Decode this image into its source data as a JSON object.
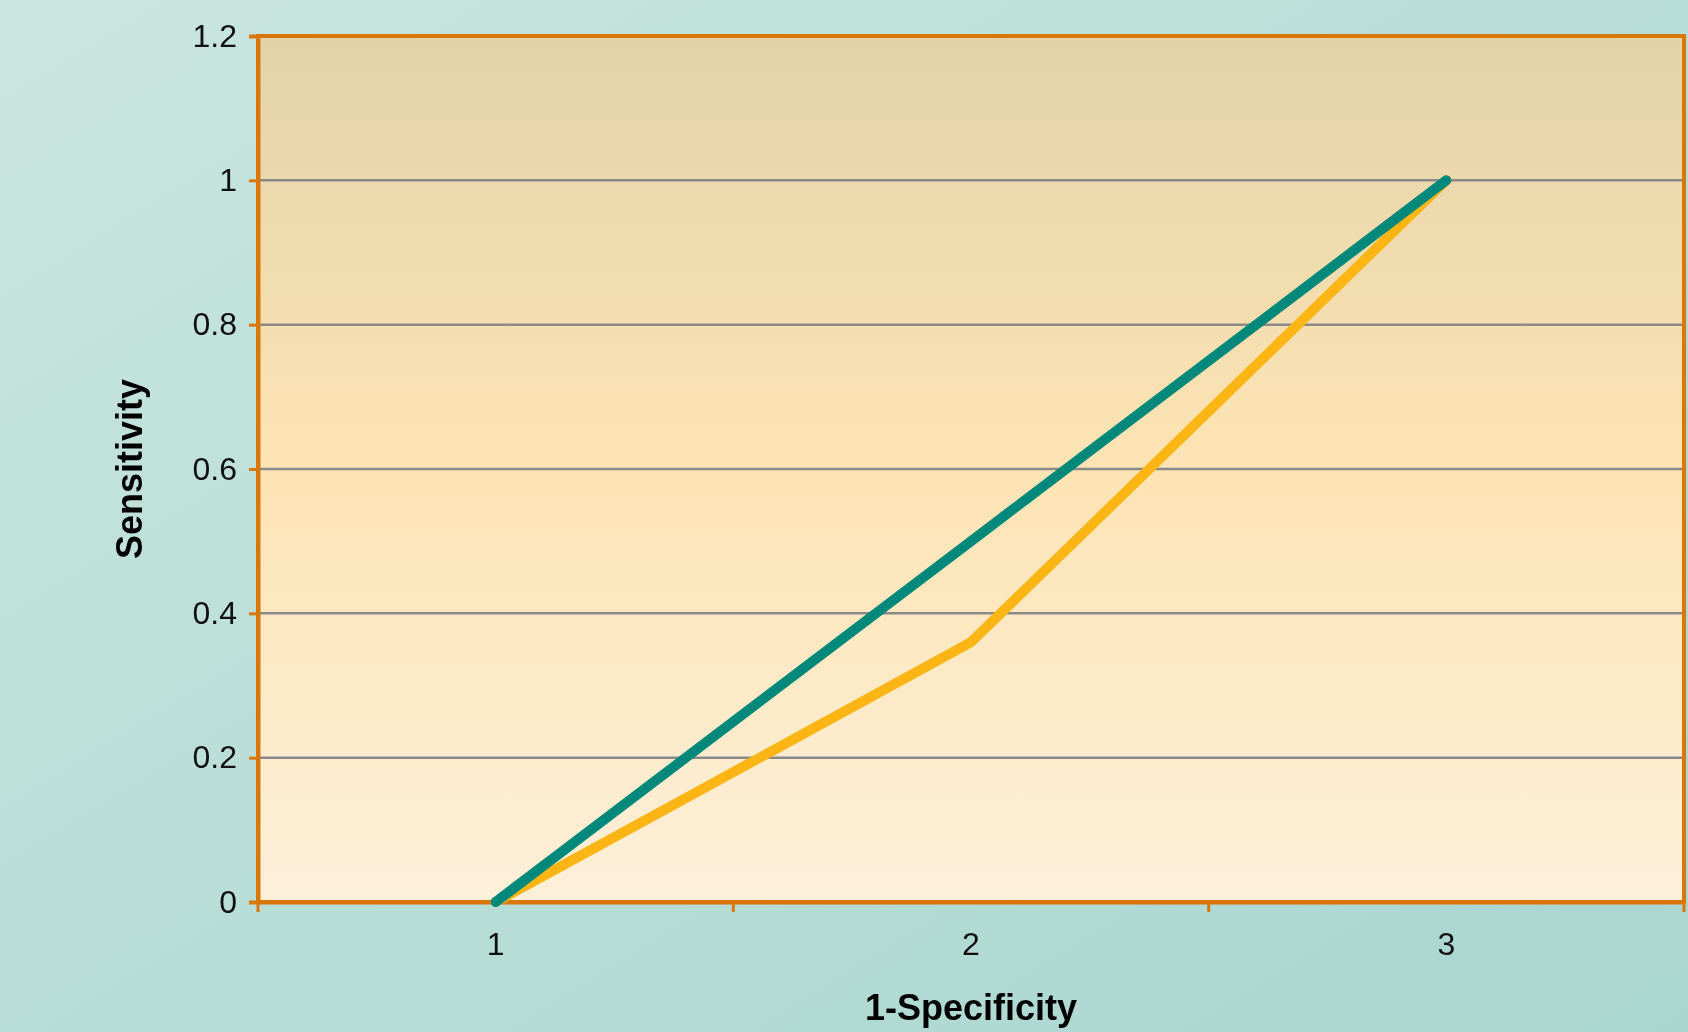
{
  "chart_data": {
    "type": "line",
    "xlabel": "1-Specificity",
    "ylabel": "Sensitivity",
    "categories": [
      "1",
      "2",
      "3"
    ],
    "series": [
      {
        "color": "#fbb515",
        "values": [
          0,
          0.36,
          1
        ]
      },
      {
        "color": "#00887a",
        "values": [
          0,
          0.5,
          1
        ]
      }
    ],
    "ylim": [
      0,
      1.2
    ],
    "yticks": [
      0,
      0.2,
      0.4,
      0.6,
      0.8,
      1,
      1.2
    ],
    "grid": "y",
    "marker": "none",
    "line_style": "solid"
  }
}
